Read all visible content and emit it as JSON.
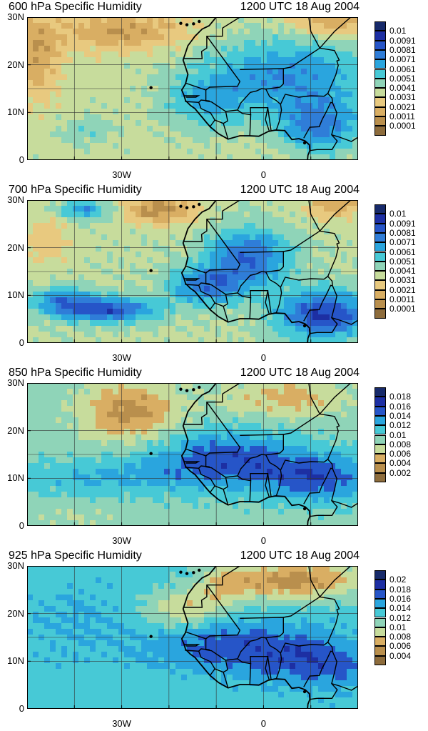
{
  "panels": [
    {
      "title": "600 hPa Specific Humidity",
      "time": "1200 UTC 18 Aug 2004",
      "ytick_labels": [
        "30N",
        "20N",
        "10N",
        "0"
      ],
      "xtick_labels": [
        "30W",
        "0"
      ],
      "colorbar_labels": [
        "0.01",
        "0.0091",
        "0.0081",
        "0.0071",
        "0.0061",
        "0.0051",
        "0.0041",
        "0.0031",
        "0.0021",
        "0.0011",
        "0.0001"
      ],
      "levels": [
        0.0001,
        0.0011,
        0.0021,
        0.0031,
        0.0041,
        0.0051,
        0.0061,
        0.0071,
        0.0081,
        0.0091,
        0.01
      ]
    },
    {
      "title": "700 hPa Specific Humidity",
      "time": "1200 UTC 18 Aug 2004",
      "ytick_labels": [
        "30N",
        "20N",
        "10N",
        "0"
      ],
      "xtick_labels": [
        "30W",
        "0"
      ],
      "colorbar_labels": [
        "0.01",
        "0.0091",
        "0.0081",
        "0.0071",
        "0.0061",
        "0.0051",
        "0.0041",
        "0.0031",
        "0.0021",
        "0.0011",
        "0.0001"
      ],
      "levels": [
        0.0001,
        0.0011,
        0.0021,
        0.0031,
        0.0041,
        0.0051,
        0.0061,
        0.0071,
        0.0081,
        0.0091,
        0.01
      ]
    },
    {
      "title": "850 hPa Specific Humidity",
      "time": "1200 UTC 18 Aug 2004",
      "ytick_labels": [
        "30N",
        "20N",
        "10N",
        "0"
      ],
      "xtick_labels": [
        "30W",
        "0"
      ],
      "colorbar_labels": [
        "0.018",
        "0.016",
        "0.014",
        "0.012",
        "0.01",
        "0.008",
        "0.006",
        "0.004",
        "0.002"
      ],
      "levels": [
        0.002,
        0.004,
        0.006,
        0.008,
        0.01,
        0.012,
        0.014,
        0.016,
        0.018
      ]
    },
    {
      "title": "925 hPa Specific Humidity",
      "time": "1200 UTC 18 Aug 2004",
      "ytick_labels": [
        "30N",
        "20N",
        "10N",
        "0"
      ],
      "xtick_labels": [
        "30W",
        "0"
      ],
      "colorbar_labels": [
        "0.02",
        "0.018",
        "0.016",
        "0.014",
        "0.012",
        "0.01",
        "0.008",
        "0.006",
        "0.004"
      ],
      "levels": [
        0.004,
        0.006,
        0.008,
        0.01,
        0.012,
        0.014,
        0.016,
        0.018,
        0.02
      ]
    }
  ],
  "map": {
    "lon_range": [
      "50W",
      "20E"
    ],
    "lat_range": [
      "0",
      "30N"
    ],
    "gridlines": "every 10 degrees"
  },
  "colors": {
    "dry": "#8b6a3a",
    "moist": "#14306e",
    "palette": [
      "#8d6c3c",
      "#b98f4d",
      "#d9ae63",
      "#e8c97f",
      "#c7dc9c",
      "#8fd4b8",
      "#47c9d6",
      "#2aa5de",
      "#2f7dd8",
      "#2655c8",
      "#1d2fa3",
      "#172a6a"
    ]
  }
}
